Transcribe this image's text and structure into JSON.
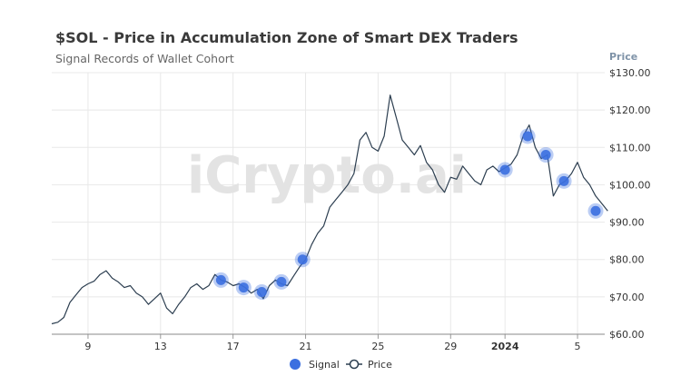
{
  "chart_data": {
    "type": "line",
    "title": "$SOL - Price in Accumulation Zone of Smart DEX Traders",
    "subtitle": "Signal Records of Wallet Cohort",
    "ylabel": "Price",
    "watermark": "iCrypto.ai",
    "ylim": [
      60,
      130
    ],
    "y_ticks": [
      {
        "value": 60,
        "label": "$60.00"
      },
      {
        "value": 70,
        "label": "$70.00"
      },
      {
        "value": 80,
        "label": "$80.00"
      },
      {
        "value": 90,
        "label": "$90.00"
      },
      {
        "value": 100,
        "label": "$100.00"
      },
      {
        "value": 110,
        "label": "$110.00"
      },
      {
        "value": 120,
        "label": "$120.00"
      },
      {
        "value": 130,
        "label": "$130.00"
      }
    ],
    "x_range": [
      "2023-12-07",
      "2024-01-06"
    ],
    "x_ticks": [
      {
        "date": "2023-12-09",
        "label": "9",
        "bold": false
      },
      {
        "date": "2023-12-13",
        "label": "13",
        "bold": false
      },
      {
        "date": "2023-12-17",
        "label": "17",
        "bold": false
      },
      {
        "date": "2023-12-21",
        "label": "21",
        "bold": false
      },
      {
        "date": "2023-12-25",
        "label": "25",
        "bold": false
      },
      {
        "date": "2023-12-29",
        "label": "29",
        "bold": false
      },
      {
        "date": "2024-01-01",
        "label": "2024",
        "bold": true
      },
      {
        "date": "2024-01-05",
        "label": "5",
        "bold": false
      }
    ],
    "grid": true,
    "legend_position": "bottom-center",
    "colors": {
      "price": "#2c3e50",
      "signal": "#3b6fe0",
      "grid": "#e8e8e8"
    },
    "series": [
      {
        "name": "Price",
        "points": [
          [
            "2023-12-07T00:00",
            62.8
          ],
          [
            "2023-12-07T08:00",
            63.2
          ],
          [
            "2023-12-07T16:00",
            64.5
          ],
          [
            "2023-12-08T00:00",
            68.5
          ],
          [
            "2023-12-08T08:00",
            70.5
          ],
          [
            "2023-12-08T16:00",
            72.5
          ],
          [
            "2023-12-09T00:00",
            73.5
          ],
          [
            "2023-12-09T08:00",
            74.2
          ],
          [
            "2023-12-09T16:00",
            76.0
          ],
          [
            "2023-12-10T00:00",
            77.0
          ],
          [
            "2023-12-10T08:00",
            75.0
          ],
          [
            "2023-12-10T16:00",
            74.0
          ],
          [
            "2023-12-11T00:00",
            72.5
          ],
          [
            "2023-12-11T08:00",
            73.0
          ],
          [
            "2023-12-11T16:00",
            71.0
          ],
          [
            "2023-12-12T00:00",
            70.0
          ],
          [
            "2023-12-12T08:00",
            68.0
          ],
          [
            "2023-12-12T16:00",
            69.5
          ],
          [
            "2023-12-13T00:00",
            71.0
          ],
          [
            "2023-12-13T08:00",
            67.0
          ],
          [
            "2023-12-13T16:00",
            65.5
          ],
          [
            "2023-12-14T00:00",
            68.0
          ],
          [
            "2023-12-14T08:00",
            70.0
          ],
          [
            "2023-12-14T16:00",
            72.5
          ],
          [
            "2023-12-15T00:00",
            73.5
          ],
          [
            "2023-12-15T08:00",
            72.0
          ],
          [
            "2023-12-15T16:00",
            73.0
          ],
          [
            "2023-12-16T00:00",
            76.0
          ],
          [
            "2023-12-16T08:00",
            74.5
          ],
          [
            "2023-12-16T16:00",
            74.0
          ],
          [
            "2023-12-17T00:00",
            73.0
          ],
          [
            "2023-12-17T08:00",
            73.5
          ],
          [
            "2023-12-17T16:00",
            72.5
          ],
          [
            "2023-12-18T00:00",
            71.0
          ],
          [
            "2023-12-18T08:00",
            72.0
          ],
          [
            "2023-12-18T16:00",
            69.5
          ],
          [
            "2023-12-19T00:00",
            73.0
          ],
          [
            "2023-12-19T08:00",
            74.5
          ],
          [
            "2023-12-19T16:00",
            73.5
          ],
          [
            "2023-12-20T00:00",
            73.0
          ],
          [
            "2023-12-20T08:00",
            75.5
          ],
          [
            "2023-12-20T16:00",
            78.0
          ],
          [
            "2023-12-21T00:00",
            80.0
          ],
          [
            "2023-12-21T08:00",
            84.0
          ],
          [
            "2023-12-21T16:00",
            87.0
          ],
          [
            "2023-12-22T00:00",
            89.0
          ],
          [
            "2023-12-22T08:00",
            94.0
          ],
          [
            "2023-12-22T16:00",
            96.0
          ],
          [
            "2023-12-23T00:00",
            98.0
          ],
          [
            "2023-12-23T08:00",
            100.0
          ],
          [
            "2023-12-23T16:00",
            103.0
          ],
          [
            "2023-12-24T00:00",
            112.0
          ],
          [
            "2023-12-24T08:00",
            114.0
          ],
          [
            "2023-12-24T16:00",
            110.0
          ],
          [
            "2023-12-25T00:00",
            109.0
          ],
          [
            "2023-12-25T08:00",
            113.0
          ],
          [
            "2023-12-25T16:00",
            124.0
          ],
          [
            "2023-12-26T00:00",
            118.0
          ],
          [
            "2023-12-26T08:00",
            112.0
          ],
          [
            "2023-12-26T16:00",
            110.0
          ],
          [
            "2023-12-27T00:00",
            108.0
          ],
          [
            "2023-12-27T08:00",
            110.5
          ],
          [
            "2023-12-27T16:00",
            106.0
          ],
          [
            "2023-12-28T00:00",
            104.0
          ],
          [
            "2023-12-28T08:00",
            100.0
          ],
          [
            "2023-12-28T16:00",
            98.0
          ],
          [
            "2023-12-29T00:00",
            102.0
          ],
          [
            "2023-12-29T08:00",
            101.5
          ],
          [
            "2023-12-29T16:00",
            105.0
          ],
          [
            "2023-12-30T00:00",
            103.0
          ],
          [
            "2023-12-30T08:00",
            101.0
          ],
          [
            "2023-12-30T16:00",
            100.0
          ],
          [
            "2023-12-31T00:00",
            104.0
          ],
          [
            "2023-12-31T08:00",
            105.0
          ],
          [
            "2023-12-31T16:00",
            103.5
          ],
          [
            "2024-01-01T00:00",
            104.5
          ],
          [
            "2024-01-01T08:00",
            105.5
          ],
          [
            "2024-01-01T16:00",
            108.0
          ],
          [
            "2024-01-02T00:00",
            113.0
          ],
          [
            "2024-01-02T08:00",
            116.0
          ],
          [
            "2024-01-02T16:00",
            110.0
          ],
          [
            "2024-01-03T00:00",
            107.0
          ],
          [
            "2024-01-03T08:00",
            108.0
          ],
          [
            "2024-01-03T16:00",
            97.0
          ],
          [
            "2024-01-04T00:00",
            100.0
          ],
          [
            "2024-01-04T08:00",
            101.0
          ],
          [
            "2024-01-04T16:00",
            103.0
          ],
          [
            "2024-01-05T00:00",
            106.0
          ],
          [
            "2024-01-05T08:00",
            102.0
          ],
          [
            "2024-01-05T16:00",
            100.0
          ],
          [
            "2024-01-06T00:00",
            97.0
          ],
          [
            "2024-01-06T08:00",
            95.0
          ],
          [
            "2024-01-06T16:00",
            93.0
          ]
        ]
      },
      {
        "name": "Signal",
        "points": [
          [
            "2023-12-16T08:00",
            74.5
          ],
          [
            "2023-12-17T14:00",
            72.5
          ],
          [
            "2023-12-18T14:00",
            71.3
          ],
          [
            "2023-12-19T16:00",
            74.0
          ],
          [
            "2023-12-20T20:00",
            80.0
          ],
          [
            "2024-01-01T00:00",
            104.0
          ],
          [
            "2024-01-02T06:00",
            113.0
          ],
          [
            "2024-01-03T06:00",
            108.0
          ],
          [
            "2024-01-04T06:00",
            101.0
          ],
          [
            "2024-01-06T00:00",
            93.0
          ]
        ]
      }
    ]
  }
}
